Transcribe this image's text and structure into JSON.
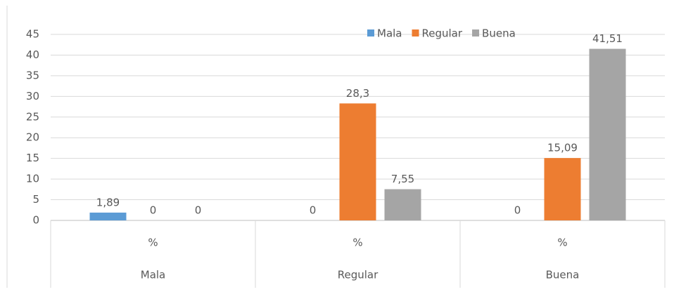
{
  "chart_data": {
    "type": "bar",
    "categories": [
      "Mala",
      "Regular",
      "Buena"
    ],
    "subcategories": [
      "%",
      "%",
      "%"
    ],
    "series": [
      {
        "name": "Mala",
        "color": "#5b9bd5",
        "values": [
          1.89,
          0,
          0
        ],
        "value_labels": [
          "1,89",
          "0",
          "0"
        ]
      },
      {
        "name": "Regular",
        "color": "#ed7d31",
        "values": [
          0,
          28.3,
          15.09
        ],
        "value_labels": [
          "0",
          "28,3",
          "15,09"
        ]
      },
      {
        "name": "Buena",
        "color": "#a5a5a5",
        "values": [
          0,
          7.55,
          41.51
        ],
        "value_labels": [
          "0",
          "7,55",
          "41,51"
        ]
      }
    ],
    "ylim": [
      0,
      45
    ],
    "yticks": [
      0,
      5,
      10,
      15,
      20,
      25,
      30,
      35,
      40,
      45
    ],
    "grid": true,
    "legend": "top-right"
  }
}
